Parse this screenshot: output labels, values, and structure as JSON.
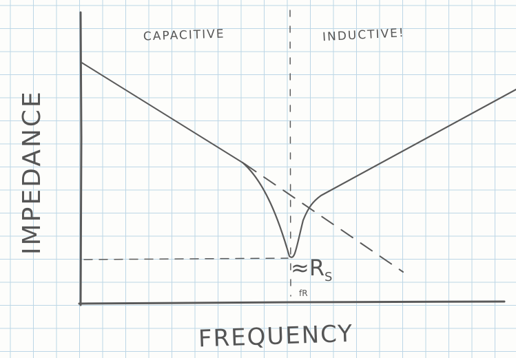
{
  "regions": {
    "left": "CAPACITIVE",
    "right": "INDUCTIVE!"
  },
  "axes": {
    "x_label": "FREQUENCY",
    "y_label": "IMPEDANCE"
  },
  "annotations": {
    "resistance": {
      "symbol": "≈R",
      "subscript": "S"
    },
    "resonance": "fR"
  }
}
